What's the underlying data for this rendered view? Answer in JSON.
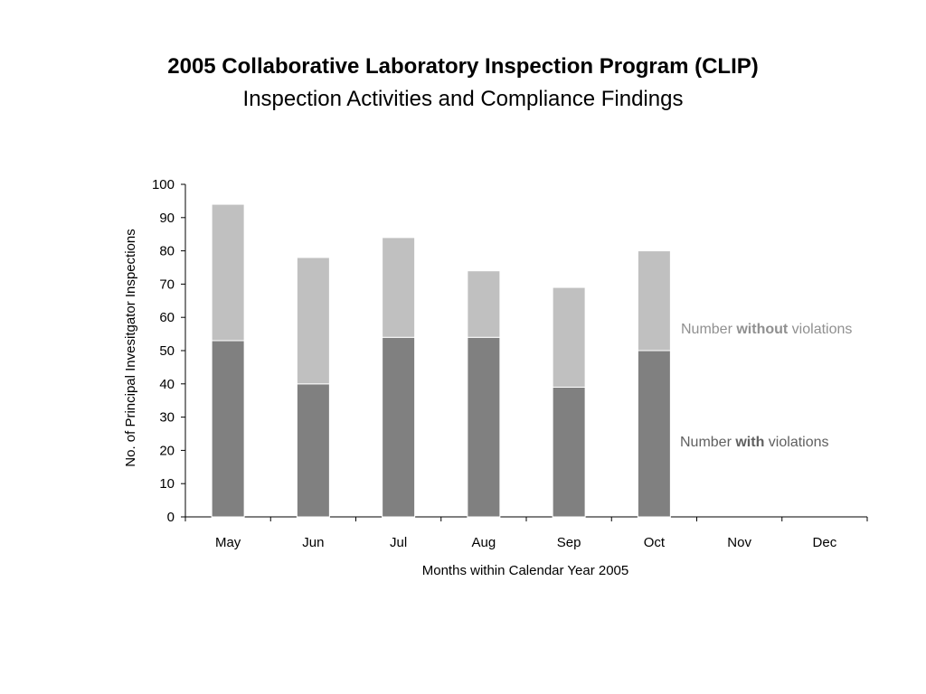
{
  "chart_data": {
    "type": "bar",
    "stacked": true,
    "title": "2005 Collaborative Laboratory Inspection Program (CLIP)",
    "subtitle": "Inspection Activities and Compliance Findings",
    "xlabel": "Months within Calendar Year 2005",
    "ylabel": "No. of Principal Invesitgator Inspections",
    "ylim": [
      0,
      100
    ],
    "yticks": [
      0,
      10,
      20,
      30,
      40,
      50,
      60,
      70,
      80,
      90,
      100
    ],
    "categories": [
      "May",
      "Jun",
      "Jul",
      "Aug",
      "Sep",
      "Oct",
      "Nov",
      "Dec"
    ],
    "series": [
      {
        "key": "with",
        "label_pre": "Number ",
        "label_bold": "with",
        "label_post": " violations",
        "color": "#808080",
        "label_color": "#606060",
        "values": [
          53,
          40,
          54,
          54,
          39,
          50,
          null,
          null
        ]
      },
      {
        "key": "without",
        "label_pre": "Number ",
        "label_bold": "without",
        "label_post": " violations",
        "color": "#c0c0c0",
        "label_color": "#909090",
        "values": [
          41,
          38,
          30,
          20,
          30,
          30,
          null,
          null
        ]
      }
    ],
    "grid": false,
    "legend": "right"
  }
}
